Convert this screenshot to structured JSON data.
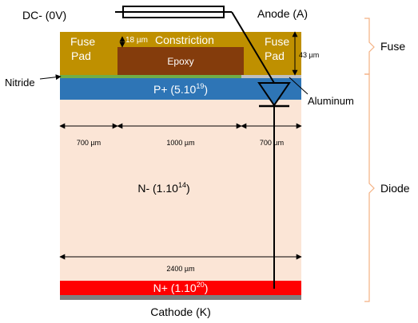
{
  "labels": {
    "dc": "DC- (0V)",
    "anode": "Anode (A)",
    "fuse_group": "Fuse",
    "diode_group": "Diode",
    "nitride": "Nitride",
    "aluminum": "Aluminum",
    "cathode": "Cathode (K)",
    "fuse_pad_left_line1": "Fuse",
    "fuse_pad_left_line2": "Pad",
    "fuse_pad_right_line1": "Fuse",
    "fuse_pad_right_line2": "Pad",
    "constriction": "Constriction",
    "epoxy": "Epoxy",
    "dim_18": "18 µm",
    "dim_43": "43 µm",
    "dim_700_left": "700 µm",
    "dim_1000": "1000 µm",
    "dim_700_right": "700 µm",
    "dim_2400": "2400 µm"
  },
  "layers": {
    "p_plus": {
      "base": "P+ (5.10",
      "exp": "19",
      "tail": ")"
    },
    "n_minus": {
      "base": "N- (1.10",
      "exp": "14",
      "tail": ")"
    },
    "n_plus": {
      "base": "N+ (1.10",
      "exp": "20",
      "tail": ")"
    }
  },
  "colors": {
    "fuse_metal": "#bf9000",
    "epoxy": "#843c0c",
    "nitride": "#70ad47",
    "p_plus": "#2e75b6",
    "n_minus": "#fbe5d6",
    "n_plus": "#ff0000",
    "cathode_metal": "#7f7f7f",
    "aluminum": "#bfbfbf",
    "brace": "#f4b183"
  }
}
